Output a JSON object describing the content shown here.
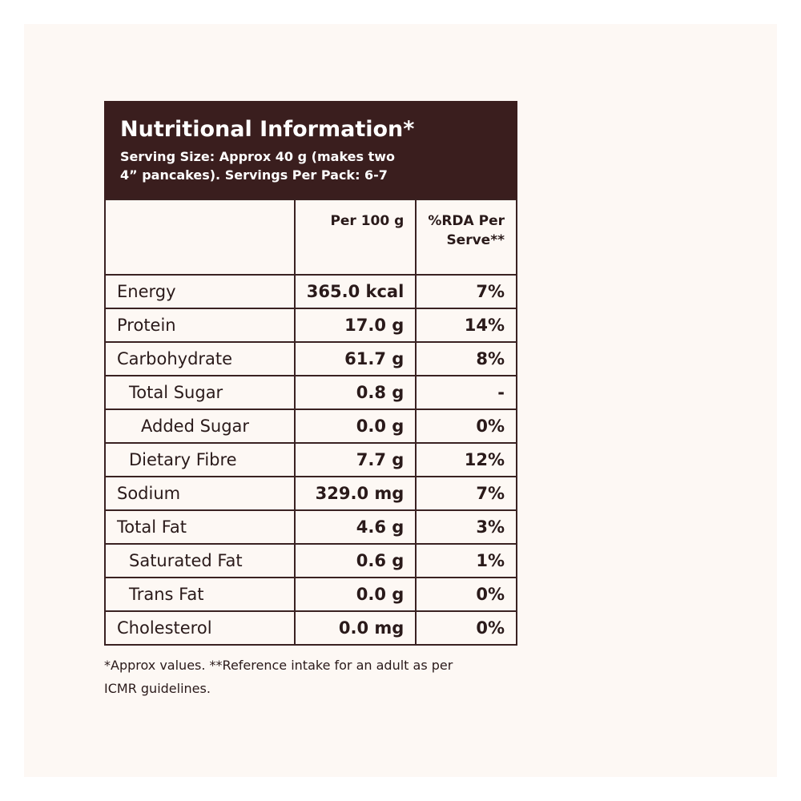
{
  "header": {
    "title": "Nutritional Information*",
    "subtitle_lines": [
      "Serving Size: Approx 40 g (makes two",
      "4” pancakes). Servings Per Pack: 6-7"
    ]
  },
  "table": {
    "columns": [
      "",
      "Per 100 g",
      "%RDA Per Serve**"
    ],
    "rows": [
      [
        "Energy",
        "365.0 kcal",
        "7%"
      ],
      [
        "Protein",
        "17.0 g",
        "14%"
      ],
      [
        "Carbohydrate",
        "61.7 g",
        "8%"
      ],
      [
        "Total Sugar",
        "0.8 g",
        "-"
      ],
      [
        "Added Sugar",
        "0.0 g",
        "0%"
      ],
      [
        "Dietary Fibre",
        "7.7 g",
        "12%"
      ],
      [
        "Sodium",
        "329.0 mg",
        "7%"
      ],
      [
        "Total Fat",
        "4.6 g",
        "3%"
      ],
      [
        "Saturated Fat",
        "0.6 g",
        "1%"
      ],
      [
        "Trans Fat",
        "0.0 g",
        "0%"
      ],
      [
        "Cholesterol",
        "0.0 mg",
        "0%"
      ]
    ]
  },
  "footnote_lines": [
    "*Approx values. **Reference intake for an adult as per",
    "ICMR guidelines."
  ]
}
